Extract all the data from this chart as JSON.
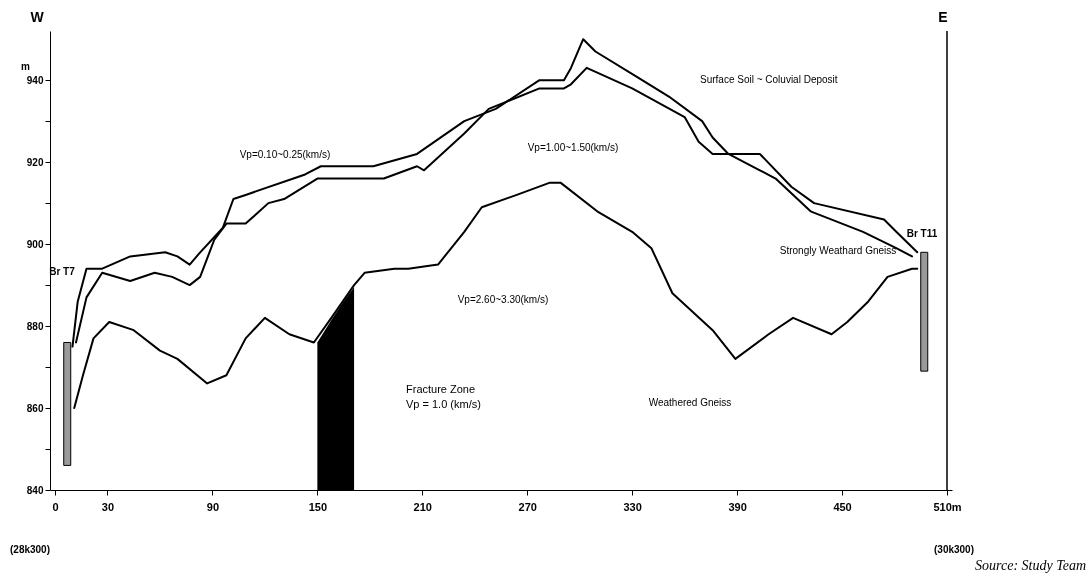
{
  "chart_data": {
    "type": "line",
    "ylabel": "m",
    "xlim": [
      0,
      510
    ],
    "ylim": [
      840,
      952
    ],
    "xticks": [
      0,
      30,
      90,
      150,
      210,
      270,
      330,
      390,
      450,
      {
        "value": 510,
        "label": "510m"
      }
    ],
    "yticks": [
      840,
      {
        "value": 850,
        "label": null
      },
      860,
      {
        "value": 870,
        "label": null
      },
      880,
      {
        "value": 890,
        "label": null
      },
      900,
      {
        "value": 910,
        "label": null
      },
      920,
      {
        "value": 930,
        "label": null
      },
      940
    ],
    "series": [
      {
        "type": "area",
        "color": "#000000",
        "x": [
          150,
          158,
          165,
          171
        ],
        "values": [
          876,
          881.5,
          886,
          889.5
        ]
      },
      {
        "color": "#000000",
        "x": [
          10,
          13,
          18,
          27,
          43,
          63,
          70,
          77,
          83,
          96,
          102,
          109,
          143,
          152,
          169,
          182,
          207,
          234,
          252,
          277,
          291,
          295,
          302,
          309,
          332,
          351,
          370,
          376,
          385,
          403,
          421,
          434,
          474,
          481,
          493
        ],
        "values": [
          875,
          886,
          894,
          894,
          897,
          898,
          897,
          895,
          898,
          904,
          911,
          912,
          917,
          919,
          919,
          919,
          922,
          930,
          933,
          940,
          940,
          943,
          950,
          947,
          941,
          936,
          930,
          926,
          922,
          922,
          914,
          910,
          906,
          903,
          898
        ]
      },
      {
        "color": "#000000",
        "x": [
          12,
          18,
          27,
          43,
          57,
          67,
          77,
          83,
          91,
          98,
          109,
          122,
          131,
          150,
          158,
          188,
          207,
          211,
          234,
          248,
          277,
          291,
          295,
          304,
          330,
          360,
          368,
          376,
          385,
          403,
          412,
          432,
          462,
          481,
          490
        ],
        "values": [
          876,
          887,
          893,
          891,
          893,
          892,
          890,
          892,
          901,
          905,
          905,
          910,
          911,
          916,
          916,
          916,
          919,
          918,
          927,
          933,
          938,
          938,
          939,
          943,
          938,
          931,
          925,
          922,
          922,
          918,
          916,
          908,
          903,
          899,
          897
        ]
      },
      {
        "color": "#000000",
        "x": [
          11,
          16,
          22,
          31,
          45,
          60,
          70,
          87,
          98,
          109,
          120,
          134,
          148,
          158,
          171,
          177,
          194,
          202,
          219,
          234,
          244,
          264,
          283,
          289,
          310,
          330,
          341,
          353,
          376,
          389,
          408,
          422,
          444,
          453,
          465,
          476,
          490,
          493
        ],
        "values": [
          860,
          868,
          877,
          881,
          879,
          874,
          872,
          866,
          868,
          877,
          882,
          878,
          876,
          882,
          890,
          893,
          894,
          894,
          895,
          903,
          909,
          912,
          915,
          915,
          908,
          903,
          899,
          888,
          879,
          872,
          878,
          882,
          878,
          881,
          886,
          892,
          894,
          894
        ]
      },
      {
        "type": "bar",
        "color": "#9a9a9a",
        "x": [
          7,
          497
        ],
        "base": [
          846,
          869
        ],
        "values": [
          30,
          29
        ]
      }
    ],
    "annotations": [
      "W",
      "E",
      "Vp=0.10~0.25(km/s)",
      "Vp=1.00~1.50(km/s)",
      "Surface Soil ~ Coluvial Deposit",
      "Strongly Weathard Gneiss",
      "Vp=2.60~3.30(km/s)",
      "Fracture Zone\nVp = 1.0 (km/s)",
      "Weathered Gneiss",
      "Br T7",
      "Br T11",
      "(28k300)",
      "(30k300)",
      "Source: Study Team"
    ]
  }
}
